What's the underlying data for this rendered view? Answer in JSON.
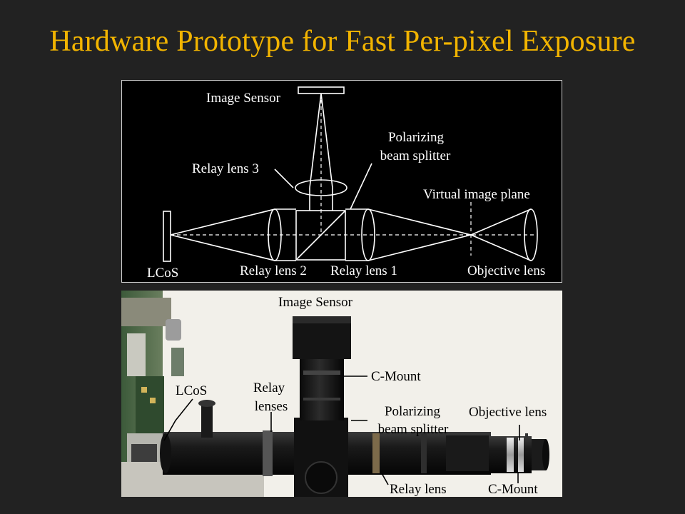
{
  "slide": {
    "title": "Hardware Prototype for Fast Per-pixel Exposure"
  },
  "schematic": {
    "labels": {
      "image_sensor": "Image Sensor",
      "polarizing_line1": "Polarizing",
      "polarizing_line2": "beam splitter",
      "relay_lens_3": "Relay lens 3",
      "virtual_image_plane": "Virtual image plane",
      "lcos": "LCoS",
      "relay_lens_2": "Relay lens 2",
      "relay_lens_1": "Relay lens 1",
      "objective_lens": "Objective lens"
    }
  },
  "photo": {
    "labels": {
      "image_sensor": "Image Sensor",
      "c_mount_top": "C-Mount",
      "lcos": "LCoS",
      "relay_line1": "Relay",
      "relay_line2": "lenses",
      "polarizing_line1": "Polarizing",
      "polarizing_line2": "beam splitter",
      "objective_lens": "Objective lens",
      "relay_lens": "Relay lens",
      "c_mount_bottom": "C-Mount"
    }
  },
  "colors": {
    "background": "#222222",
    "title": "#f2b400",
    "schematic_bg": "#000000",
    "schematic_lines": "#ffffff",
    "photo_bg": "#f2f0ea"
  }
}
